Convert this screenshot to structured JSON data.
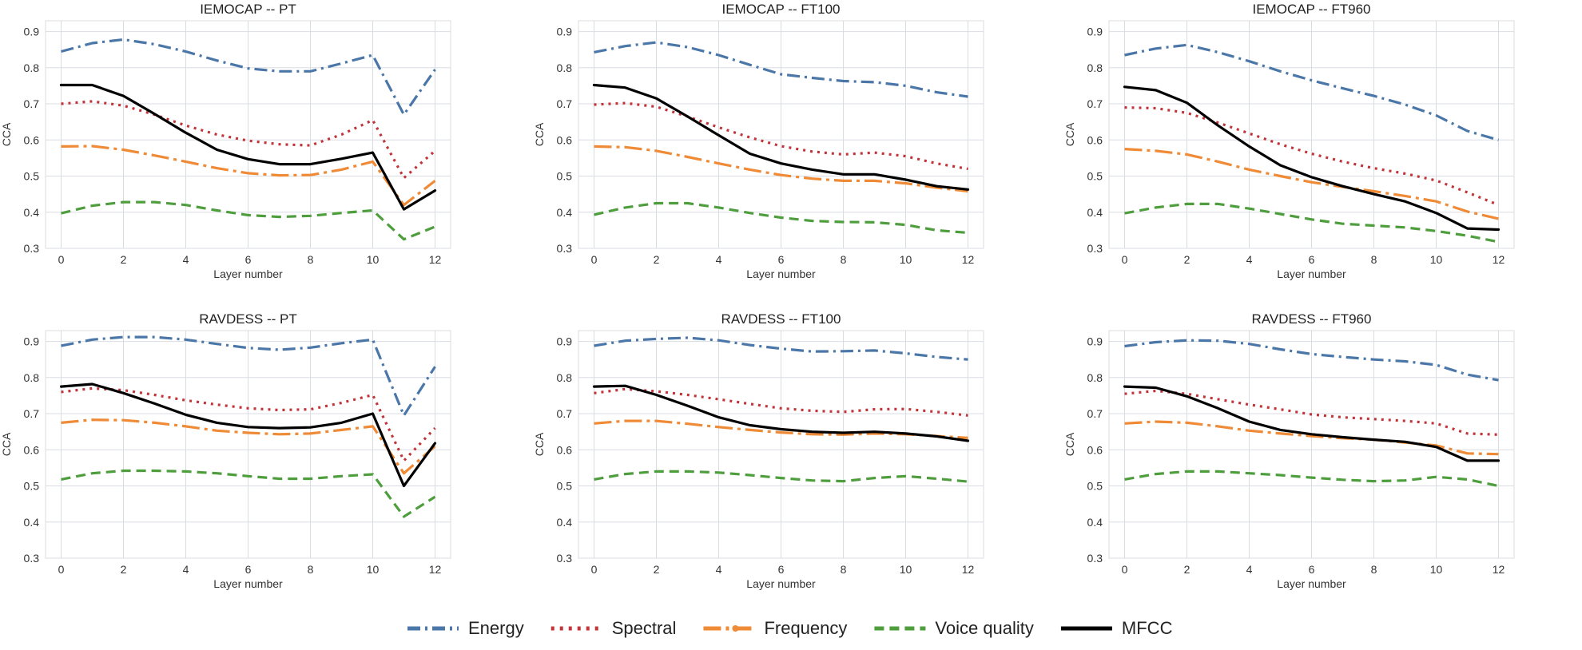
{
  "chart_data": {
    "type": "line",
    "shared": {
      "x": [
        0,
        1,
        2,
        3,
        4,
        5,
        6,
        7,
        8,
        9,
        10,
        11,
        12
      ],
      "xticks": [
        0,
        2,
        4,
        6,
        8,
        10,
        12
      ],
      "yticks": [
        0.3,
        0.4,
        0.5,
        0.6,
        0.7,
        0.8,
        0.9
      ],
      "xlabel": "Layer number",
      "ylabel": "CCA",
      "xlim": [
        -0.5,
        12.5
      ],
      "ylim": [
        0.3,
        0.93
      ],
      "grid": true,
      "legend_position": "bottom-center"
    },
    "legend": [
      {
        "name": "Energy",
        "color": "#4a76a8",
        "style": "dashdot"
      },
      {
        "name": "Spectral",
        "color": "#c0343a",
        "style": "dotted"
      },
      {
        "name": "Frequency",
        "color": "#ef8a36",
        "style": "longdash-dot"
      },
      {
        "name": "Voice quality",
        "color": "#4e9e3d",
        "style": "dashed"
      },
      {
        "name": "MFCC",
        "color": "#000000",
        "style": "solid"
      }
    ],
    "panels": [
      {
        "title": "IEMOCAP -- PT",
        "series": [
          {
            "name": "Energy",
            "values": [
              0.845,
              0.868,
              0.878,
              0.865,
              0.845,
              0.82,
              0.798,
              0.79,
              0.79,
              0.812,
              0.835,
              0.67,
              0.795
            ]
          },
          {
            "name": "Spectral",
            "values": [
              0.7,
              0.707,
              0.695,
              0.67,
              0.64,
              0.615,
              0.598,
              0.588,
              0.585,
              0.615,
              0.655,
              0.495,
              0.57
            ]
          },
          {
            "name": "Frequency",
            "values": [
              0.582,
              0.583,
              0.573,
              0.557,
              0.54,
              0.522,
              0.508,
              0.502,
              0.503,
              0.518,
              0.54,
              0.42,
              0.487
            ]
          },
          {
            "name": "Voice quality",
            "values": [
              0.397,
              0.418,
              0.428,
              0.428,
              0.42,
              0.405,
              0.392,
              0.387,
              0.39,
              0.398,
              0.405,
              0.325,
              0.36
            ]
          },
          {
            "name": "MFCC",
            "values": [
              0.752,
              0.752,
              0.722,
              0.672,
              0.62,
              0.573,
              0.547,
              0.533,
              0.533,
              0.548,
              0.565,
              0.408,
              0.46
            ]
          }
        ]
      },
      {
        "title": "IEMOCAP -- FT100",
        "series": [
          {
            "name": "Energy",
            "values": [
              0.843,
              0.86,
              0.87,
              0.857,
              0.835,
              0.808,
              0.782,
              0.772,
              0.763,
              0.76,
              0.75,
              0.732,
              0.72
            ]
          },
          {
            "name": "Spectral",
            "values": [
              0.698,
              0.702,
              0.692,
              0.665,
              0.635,
              0.607,
              0.583,
              0.568,
              0.56,
              0.565,
              0.555,
              0.535,
              0.52
            ]
          },
          {
            "name": "Frequency",
            "values": [
              0.582,
              0.58,
              0.57,
              0.553,
              0.535,
              0.518,
              0.503,
              0.493,
              0.487,
              0.487,
              0.48,
              0.468,
              0.458
            ]
          },
          {
            "name": "Voice quality",
            "values": [
              0.393,
              0.413,
              0.425,
              0.425,
              0.413,
              0.398,
              0.385,
              0.376,
              0.373,
              0.372,
              0.365,
              0.35,
              0.343
            ]
          },
          {
            "name": "MFCC",
            "values": [
              0.752,
              0.745,
              0.715,
              0.665,
              0.613,
              0.562,
              0.535,
              0.518,
              0.505,
              0.505,
              0.49,
              0.472,
              0.463
            ]
          }
        ]
      },
      {
        "title": "IEMOCAP -- FT960",
        "series": [
          {
            "name": "Energy",
            "values": [
              0.835,
              0.853,
              0.863,
              0.843,
              0.818,
              0.79,
              0.765,
              0.743,
              0.722,
              0.698,
              0.668,
              0.625,
              0.6
            ]
          },
          {
            "name": "Spectral",
            "values": [
              0.69,
              0.688,
              0.675,
              0.648,
              0.618,
              0.588,
              0.562,
              0.54,
              0.522,
              0.507,
              0.488,
              0.455,
              0.42
            ]
          },
          {
            "name": "Frequency",
            "values": [
              0.575,
              0.57,
              0.56,
              0.54,
              0.518,
              0.5,
              0.483,
              0.47,
              0.458,
              0.445,
              0.43,
              0.402,
              0.382
            ]
          },
          {
            "name": "Voice quality",
            "values": [
              0.397,
              0.413,
              0.423,
              0.423,
              0.41,
              0.395,
              0.38,
              0.368,
              0.363,
              0.358,
              0.348,
              0.335,
              0.318
            ]
          },
          {
            "name": "MFCC",
            "values": [
              0.747,
              0.738,
              0.703,
              0.64,
              0.582,
              0.53,
              0.497,
              0.472,
              0.45,
              0.43,
              0.398,
              0.355,
              0.352
            ]
          }
        ]
      },
      {
        "title": "RAVDESS -- PT",
        "series": [
          {
            "name": "Energy",
            "values": [
              0.888,
              0.905,
              0.912,
              0.912,
              0.905,
              0.893,
              0.882,
              0.877,
              0.883,
              0.895,
              0.905,
              0.695,
              0.83
            ]
          },
          {
            "name": "Spectral",
            "values": [
              0.76,
              0.77,
              0.765,
              0.752,
              0.737,
              0.725,
              0.715,
              0.71,
              0.712,
              0.73,
              0.752,
              0.57,
              0.66
            ]
          },
          {
            "name": "Frequency",
            "values": [
              0.675,
              0.683,
              0.682,
              0.675,
              0.665,
              0.653,
              0.647,
              0.643,
              0.645,
              0.655,
              0.665,
              0.535,
              0.61
            ]
          },
          {
            "name": "Voice quality",
            "values": [
              0.518,
              0.535,
              0.542,
              0.542,
              0.54,
              0.535,
              0.527,
              0.52,
              0.52,
              0.527,
              0.532,
              0.415,
              0.47
            ]
          },
          {
            "name": "MFCC",
            "values": [
              0.775,
              0.782,
              0.757,
              0.728,
              0.697,
              0.675,
              0.663,
              0.66,
              0.662,
              0.675,
              0.7,
              0.5,
              0.618
            ]
          }
        ]
      },
      {
        "title": "RAVDESS -- FT100",
        "series": [
          {
            "name": "Energy",
            "values": [
              0.888,
              0.902,
              0.907,
              0.91,
              0.903,
              0.89,
              0.88,
              0.872,
              0.873,
              0.875,
              0.867,
              0.857,
              0.85
            ]
          },
          {
            "name": "Spectral",
            "values": [
              0.757,
              0.768,
              0.762,
              0.752,
              0.74,
              0.727,
              0.715,
              0.708,
              0.705,
              0.712,
              0.713,
              0.705,
              0.695
            ]
          },
          {
            "name": "Frequency",
            "values": [
              0.673,
              0.68,
              0.68,
              0.672,
              0.663,
              0.655,
              0.648,
              0.643,
              0.642,
              0.645,
              0.643,
              0.638,
              0.633
            ]
          },
          {
            "name": "Voice quality",
            "values": [
              0.518,
              0.533,
              0.54,
              0.54,
              0.537,
              0.53,
              0.522,
              0.515,
              0.513,
              0.522,
              0.527,
              0.52,
              0.512
            ]
          },
          {
            "name": "MFCC",
            "values": [
              0.775,
              0.777,
              0.752,
              0.722,
              0.69,
              0.668,
              0.657,
              0.65,
              0.647,
              0.65,
              0.645,
              0.637,
              0.625
            ]
          }
        ]
      },
      {
        "title": "RAVDESS -- FT960",
        "series": [
          {
            "name": "Energy",
            "values": [
              0.887,
              0.898,
              0.903,
              0.902,
              0.893,
              0.878,
              0.865,
              0.857,
              0.85,
              0.845,
              0.835,
              0.808,
              0.793
            ]
          },
          {
            "name": "Spectral",
            "values": [
              0.755,
              0.763,
              0.755,
              0.74,
              0.725,
              0.712,
              0.698,
              0.69,
              0.685,
              0.68,
              0.673,
              0.645,
              0.642
            ]
          },
          {
            "name": "Frequency",
            "values": [
              0.673,
              0.678,
              0.675,
              0.665,
              0.653,
              0.645,
              0.638,
              0.632,
              0.628,
              0.62,
              0.612,
              0.59,
              0.588
            ]
          },
          {
            "name": "Voice quality",
            "values": [
              0.518,
              0.533,
              0.54,
              0.54,
              0.535,
              0.53,
              0.523,
              0.517,
              0.513,
              0.515,
              0.525,
              0.518,
              0.5
            ]
          },
          {
            "name": "MFCC",
            "values": [
              0.775,
              0.772,
              0.748,
              0.715,
              0.678,
              0.655,
              0.643,
              0.635,
              0.628,
              0.622,
              0.608,
              0.57,
              0.57
            ]
          }
        ]
      }
    ]
  }
}
